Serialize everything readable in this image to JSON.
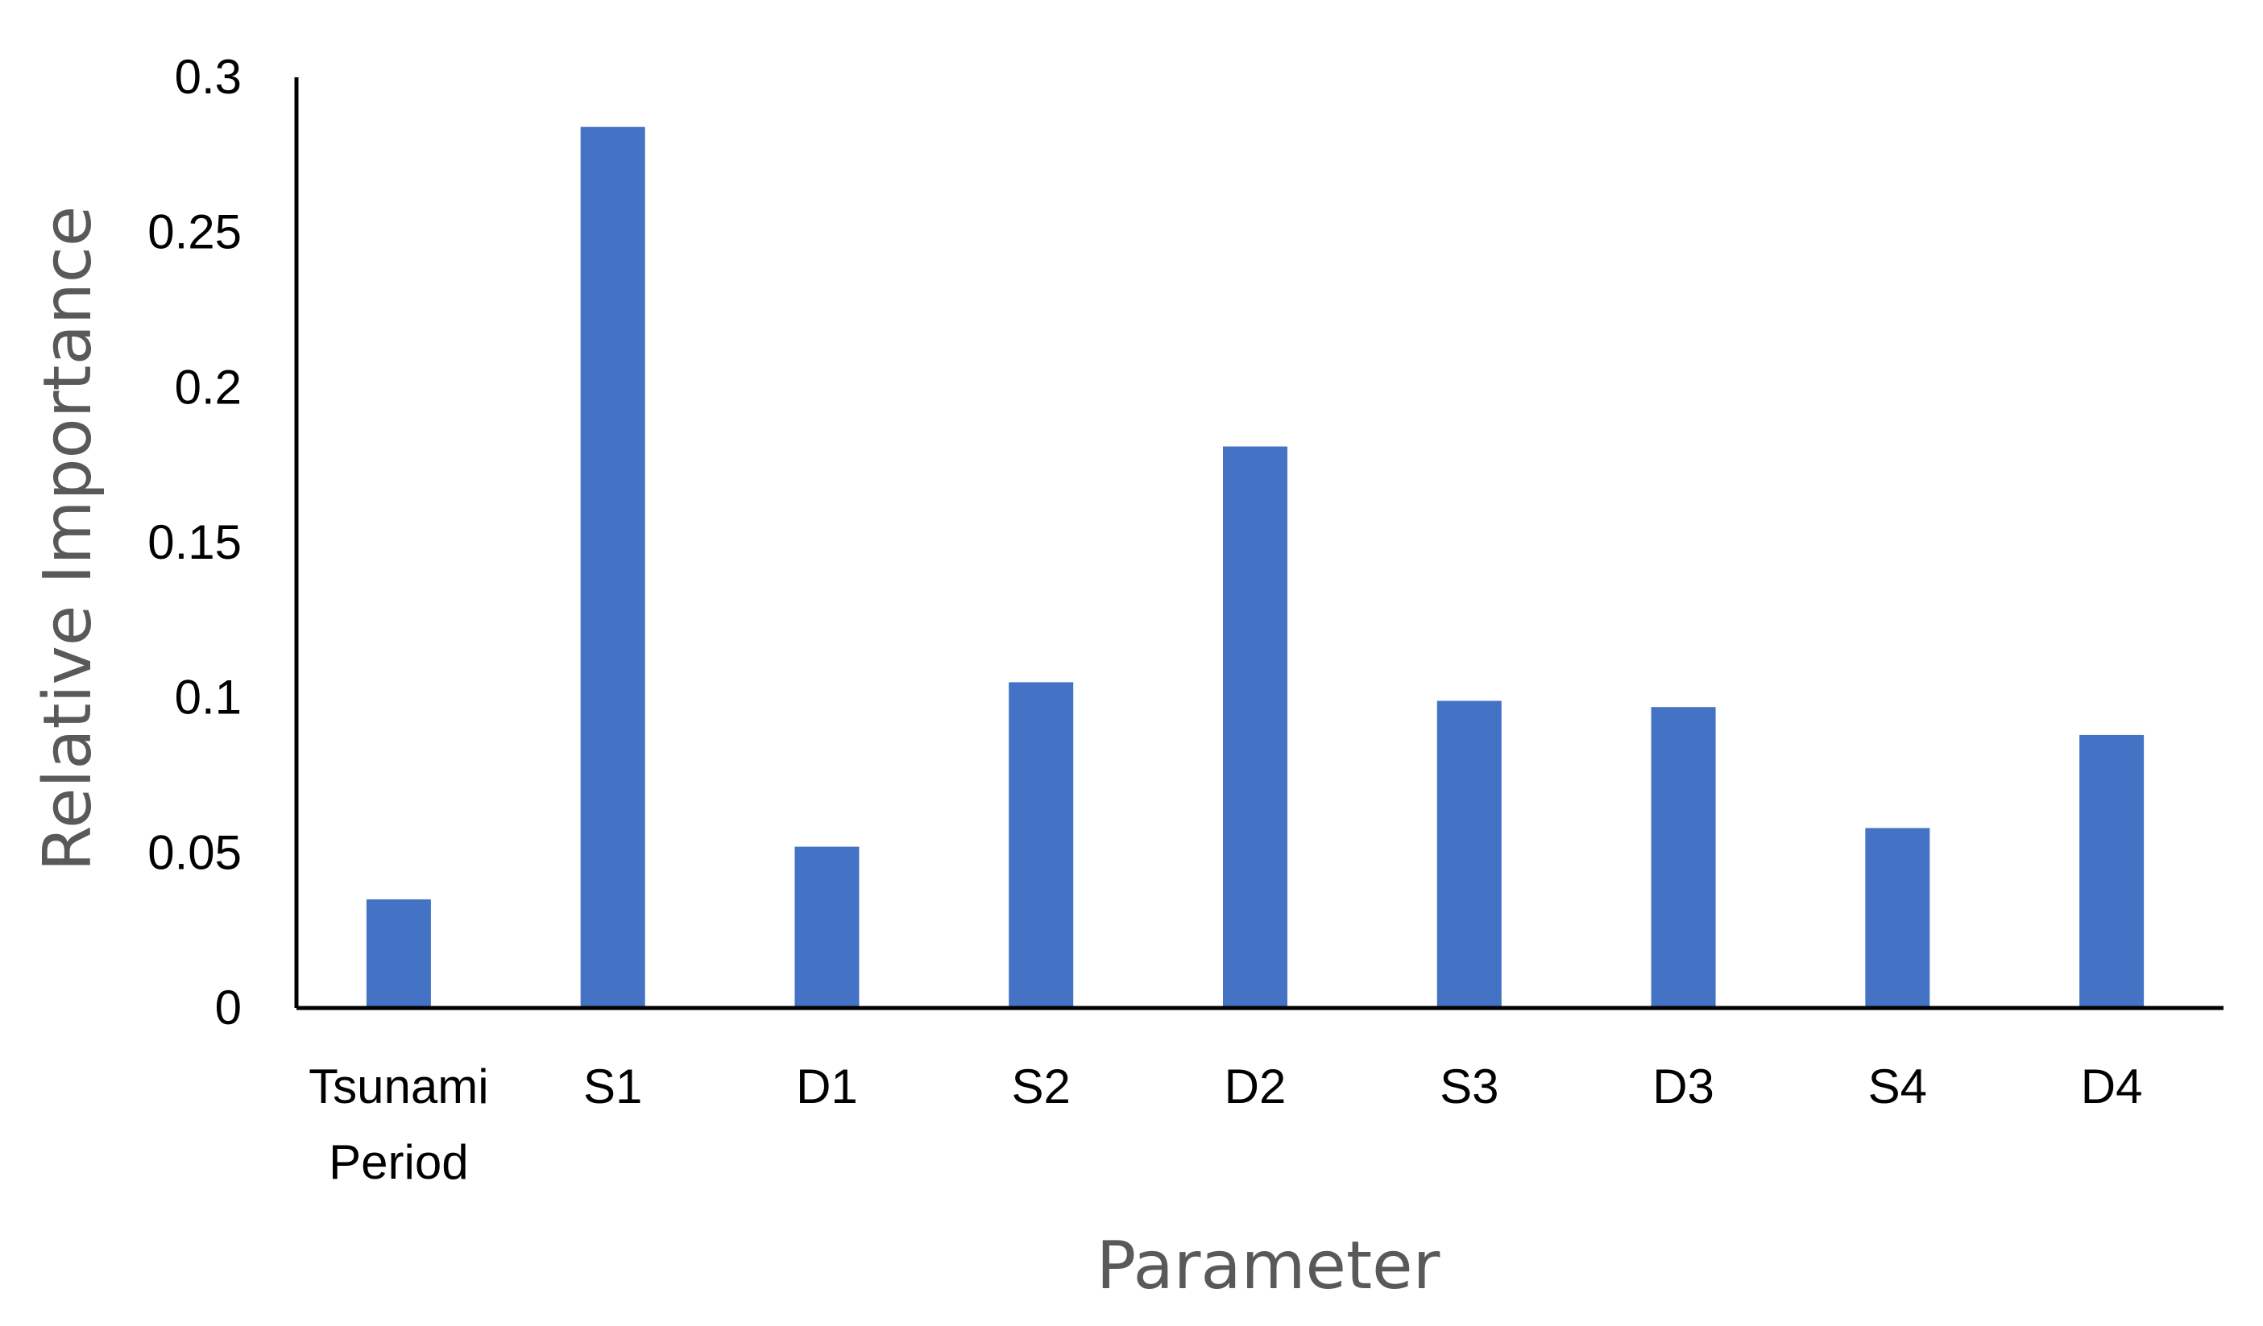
{
  "chart_data": {
    "type": "bar",
    "categories": [
      "Tsunami\nPeriod",
      "S1",
      "D1",
      "S2",
      "D2",
      "S3",
      "D3",
      "S4",
      "D4"
    ],
    "values": [
      0.035,
      0.284,
      0.052,
      0.105,
      0.181,
      0.099,
      0.097,
      0.058,
      0.088
    ],
    "xlabel": "Parameter",
    "ylabel": "Relative Importance",
    "ylim": [
      0,
      0.3
    ],
    "yticks": [
      "0",
      "0.05",
      "0.1",
      "0.15",
      "0.2",
      "0.25",
      "0.3"
    ],
    "grid": false,
    "legend": "none"
  },
  "colors": {
    "bar": "#4472C4",
    "axis": "#000000",
    "axis_title": "#595959"
  }
}
